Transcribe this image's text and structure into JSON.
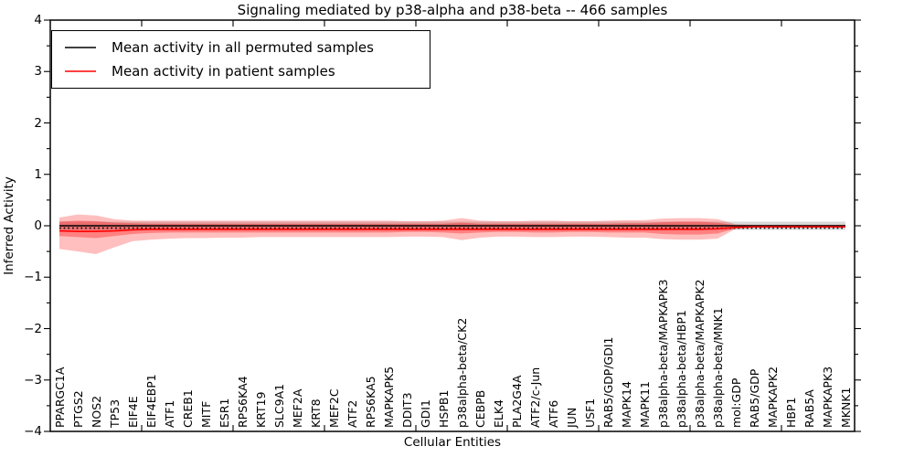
{
  "title": "Signaling mediated by p38-alpha and p38-beta -- 466 samples",
  "axes": {
    "ylabel": "Inferred Activity",
    "xlabel": "Cellular Entities",
    "yticks": {
      "values": [
        4,
        3,
        2,
        1,
        0,
        -1,
        -2,
        -3,
        -4
      ],
      "labels": [
        "4",
        "3",
        "2",
        "1",
        "0",
        "−1",
        "−2",
        "−3",
        "−4"
      ]
    }
  },
  "legend": {
    "entries": [
      {
        "label": "Mean activity in all permuted samples",
        "color": "#000000"
      },
      {
        "label": "Mean activity in patient samples",
        "color": "#ff0000"
      }
    ]
  },
  "chart_data": {
    "type": "line",
    "title": "Signaling mediated by p38-alpha and p38-beta -- 466 samples",
    "xlabel": "Cellular Entities",
    "ylabel": "Inferred Activity",
    "ylim": [
      -4,
      4
    ],
    "x_major_ticks": [
      5,
      10,
      15,
      20,
      25,
      30,
      35,
      40
    ],
    "y_minor_step": 0.5,
    "grid": false,
    "legend_position": "upper left",
    "categories": [
      "PPARGC1A",
      "PTGS2",
      "NOS2",
      "TP53",
      "EIF4E",
      "EIF4EBP1",
      "ATF1",
      "CREB1",
      "MITF",
      "ESR1",
      "RPS6KA4",
      "KRT19",
      "SLC9A1",
      "MEF2A",
      "KRT8",
      "MEF2C",
      "ATF2",
      "RPS6KA5",
      "MAPKAPK5",
      "DDIT3",
      "GDI1",
      "HSPB1",
      "p38alpha-beta/CK2",
      "CEBPB",
      "ELK4",
      "PLA2G4A",
      "ATF2/c-Jun",
      "ATF6",
      "JUN",
      "USF1",
      "RAB5/GDP/GDI1",
      "MAPK14",
      "MAPK11",
      "p38alpha-beta/MAPKAPK3",
      "p38alpha-beta/HBP1",
      "p38alpha-beta/MAPKAPK2",
      "p38alpha-beta/MNK1",
      "mol:GDP",
      "RAB5/GDP",
      "MAPKAPK2",
      "HBP1",
      "RAB5A",
      "MAPKAPK3",
      "MKNK1"
    ],
    "series": [
      {
        "name": "Mean activity in all permuted samples",
        "color": "#000000",
        "style": "solid",
        "values": [
          0,
          0,
          0,
          0,
          0,
          0,
          0,
          0,
          0,
          0,
          0,
          0,
          0,
          0,
          0,
          0,
          0,
          0,
          0,
          0,
          0,
          0,
          0,
          0,
          0,
          0,
          0,
          0,
          0,
          0,
          0,
          0,
          0,
          0,
          0,
          0,
          0,
          0,
          0,
          0,
          0,
          0,
          0,
          0
        ]
      },
      {
        "name": "permuted-reference-dotted",
        "color": "#000000",
        "style": "dotted",
        "values": [
          -0.045,
          -0.045,
          -0.045,
          -0.045,
          -0.045,
          -0.045,
          -0.045,
          -0.045,
          -0.045,
          -0.045,
          -0.045,
          -0.045,
          -0.045,
          -0.045,
          -0.045,
          -0.045,
          -0.045,
          -0.045,
          -0.045,
          -0.045,
          -0.045,
          -0.045,
          -0.045,
          -0.045,
          -0.045,
          -0.045,
          -0.045,
          -0.045,
          -0.045,
          -0.045,
          -0.045,
          -0.045,
          -0.045,
          -0.045,
          -0.045,
          -0.045,
          -0.045,
          -0.045,
          -0.045,
          -0.045,
          -0.045,
          -0.045,
          -0.045,
          -0.045
        ]
      },
      {
        "name": "Mean activity in patient samples",
        "color": "#ff0000",
        "style": "solid",
        "values": [
          -0.1,
          -0.11,
          -0.11,
          -0.1,
          -0.08,
          -0.07,
          -0.07,
          -0.07,
          -0.07,
          -0.07,
          -0.07,
          -0.07,
          -0.07,
          -0.07,
          -0.07,
          -0.07,
          -0.07,
          -0.07,
          -0.07,
          -0.07,
          -0.07,
          -0.07,
          -0.07,
          -0.07,
          -0.07,
          -0.07,
          -0.07,
          -0.07,
          -0.07,
          -0.07,
          -0.07,
          -0.07,
          -0.07,
          -0.07,
          -0.07,
          -0.07,
          -0.06,
          -0.03,
          -0.02,
          -0.02,
          -0.02,
          -0.02,
          -0.02,
          -0.02
        ]
      }
    ],
    "bands": [
      {
        "name": "permuted-std-band",
        "color": "rgba(130,130,130,0.30)",
        "upper": [
          0.08,
          0.08,
          0.08,
          0.08,
          0.08,
          0.08,
          0.08,
          0.08,
          0.08,
          0.08,
          0.08,
          0.08,
          0.08,
          0.08,
          0.08,
          0.08,
          0.08,
          0.08,
          0.08,
          0.08,
          0.08,
          0.08,
          0.08,
          0.08,
          0.08,
          0.08,
          0.08,
          0.08,
          0.08,
          0.08,
          0.08,
          0.08,
          0.08,
          0.08,
          0.08,
          0.08,
          0.08,
          0.08,
          0.08,
          0.08,
          0.08,
          0.08,
          0.08,
          0.08
        ],
        "lower": [
          -0.08,
          -0.08,
          -0.08,
          -0.08,
          -0.08,
          -0.08,
          -0.08,
          -0.08,
          -0.08,
          -0.08,
          -0.08,
          -0.08,
          -0.08,
          -0.08,
          -0.08,
          -0.08,
          -0.08,
          -0.08,
          -0.08,
          -0.08,
          -0.08,
          -0.08,
          -0.08,
          -0.08,
          -0.08,
          -0.08,
          -0.08,
          -0.08,
          -0.08,
          -0.08,
          -0.08,
          -0.08,
          -0.08,
          -0.08,
          -0.08,
          -0.08,
          -0.08,
          -0.08,
          -0.08,
          -0.08,
          -0.08,
          -0.08,
          -0.08,
          -0.08
        ]
      },
      {
        "name": "patient-outer-band",
        "color": "rgba(255,0,0,0.25)",
        "upper": [
          0.16,
          0.22,
          0.2,
          0.13,
          0.1,
          0.1,
          0.1,
          0.1,
          0.1,
          0.1,
          0.1,
          0.1,
          0.1,
          0.1,
          0.1,
          0.1,
          0.1,
          0.1,
          0.1,
          0.09,
          0.09,
          0.1,
          0.15,
          0.1,
          0.09,
          0.09,
          0.1,
          0.1,
          0.09,
          0.09,
          0.1,
          0.11,
          0.11,
          0.14,
          0.15,
          0.15,
          0.13,
          0.03,
          0.02,
          0.02,
          0.02,
          0.02,
          0.02,
          0.02
        ],
        "lower": [
          -0.45,
          -0.5,
          -0.55,
          -0.42,
          -0.3,
          -0.27,
          -0.25,
          -0.24,
          -0.24,
          -0.23,
          -0.23,
          -0.22,
          -0.22,
          -0.22,
          -0.22,
          -0.22,
          -0.22,
          -0.22,
          -0.22,
          -0.21,
          -0.21,
          -0.22,
          -0.28,
          -0.23,
          -0.21,
          -0.21,
          -0.22,
          -0.22,
          -0.21,
          -0.21,
          -0.22,
          -0.23,
          -0.23,
          -0.26,
          -0.27,
          -0.27,
          -0.25,
          -0.06,
          -0.04,
          -0.04,
          -0.04,
          -0.04,
          -0.04,
          -0.04
        ]
      },
      {
        "name": "patient-inner-band",
        "color": "rgba(255,0,0,0.32)",
        "upper": [
          0.08,
          0.1,
          0.09,
          0.06,
          0.05,
          0.04,
          0.04,
          0.04,
          0.04,
          0.04,
          0.04,
          0.04,
          0.04,
          0.04,
          0.04,
          0.04,
          0.04,
          0.04,
          0.04,
          0.04,
          0.04,
          0.04,
          0.06,
          0.04,
          0.04,
          0.04,
          0.04,
          0.04,
          0.04,
          0.04,
          0.04,
          0.05,
          0.05,
          0.07,
          0.08,
          0.08,
          0.06,
          0.01,
          0.01,
          0.01,
          0.01,
          0.01,
          0.01,
          0.01
        ],
        "lower": [
          -0.2,
          -0.22,
          -0.24,
          -0.2,
          -0.16,
          -0.14,
          -0.13,
          -0.13,
          -0.13,
          -0.13,
          -0.13,
          -0.13,
          -0.13,
          -0.13,
          -0.13,
          -0.13,
          -0.13,
          -0.13,
          -0.13,
          -0.12,
          -0.12,
          -0.13,
          -0.15,
          -0.13,
          -0.12,
          -0.12,
          -0.13,
          -0.13,
          -0.12,
          -0.12,
          -0.13,
          -0.13,
          -0.13,
          -0.16,
          -0.17,
          -0.17,
          -0.15,
          -0.05,
          -0.03,
          -0.03,
          -0.03,
          -0.03,
          -0.03,
          -0.03
        ]
      }
    ]
  }
}
